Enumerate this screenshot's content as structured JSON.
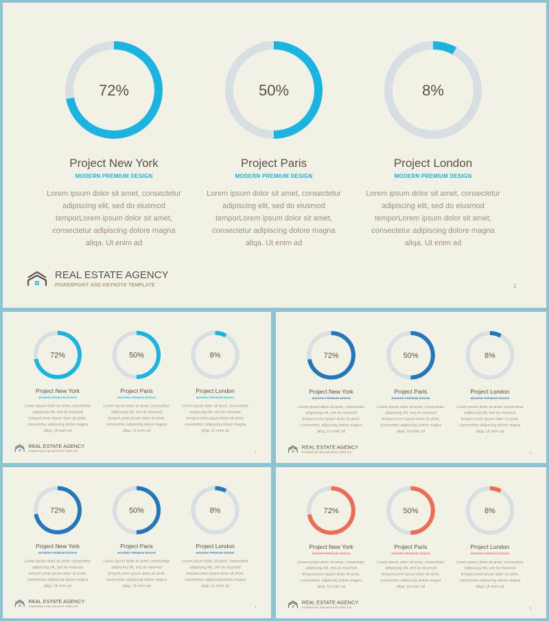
{
  "brand": {
    "title": "REAL ESTATE AGENCY",
    "subtitle": "POWERPOINT AND KEYNOTE TEMPLATE"
  },
  "projects": [
    {
      "value": 0.72,
      "percent_label": "72%",
      "title": "Project New York",
      "subtitle": "MODERN PREMIUM DESIGN",
      "body": "Lorem ipsum dolor sit amet, consectetur adipiscing elit, sed do eiusmod temporLorem ipsum dolor sit amet, consectetur adipiscing dolore magna aliqa. Ut enim ad"
    },
    {
      "value": 0.5,
      "percent_label": "50%",
      "title": "Project Paris",
      "subtitle": "MODERN PREMIUM DESIGN",
      "body": "Lorem ipsum dolor sit amet, consectetur adipiscing elit, sed do eiusmod temporLorem ipsum dolor sit amet, consectetur adipiscing dolore magna aliqa. Ut enim ad"
    },
    {
      "value": 0.08,
      "percent_label": "8%",
      "title": "Project London",
      "subtitle": "MODERN PREMIUM DESIGN",
      "body": "Lorem ipsum dolor sit amet, consectetur adipiscing elit, sed do eiusmod temporLorem ipsum dolor sit amet, consectetur adipiscing dolore magna aliqa. Ut enim ad"
    }
  ],
  "slides": [
    {
      "accent": "#1ab4e2",
      "page_number": "1"
    },
    {
      "accent": "#1ab4e2",
      "page_number": "2"
    },
    {
      "accent": "#2277bd",
      "page_number": "3"
    },
    {
      "accent": "#2277bd",
      "page_number": "4"
    },
    {
      "accent": "#ef6c50",
      "page_number": "5"
    }
  ],
  "colors": {
    "ring_track": "#d7dfe3",
    "logo": "#5a4f45",
    "logo_window": "#1ab4e2"
  }
}
